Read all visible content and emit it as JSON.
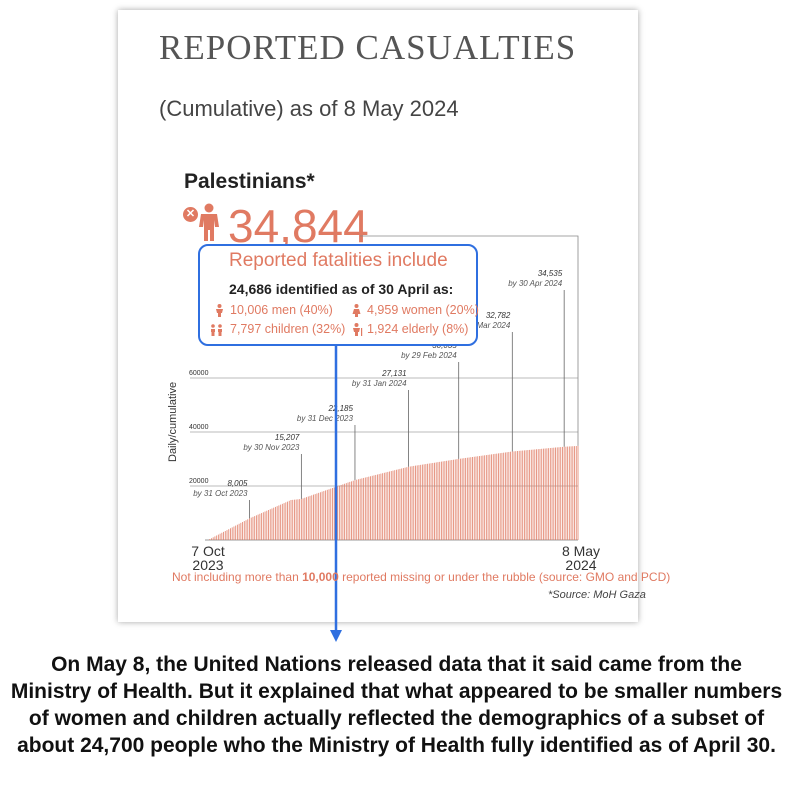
{
  "header": {
    "title": "REPORTED CASUALTIES",
    "subtitle": "(Cumulative) as of 8 May 2024"
  },
  "group": {
    "name": "Palestinians*",
    "total": "34,844"
  },
  "callout": {
    "title": "Reported fatalities include",
    "identified": "24,686 identified as of 30 April as:",
    "breakdown": [
      "10,006 men (40%)",
      "4,959 women (20%)",
      "7,797 children (32%)",
      "1,924 elderly (8%)"
    ]
  },
  "footer": {
    "note_prefix": "Not including more than ",
    "note_bold": "10,000",
    "note_suffix": " reported missing or under the rubble (source: GMO and PCD)",
    "source": "*Source: MoH Gaza"
  },
  "caption": "On May 8, the United Nations released data that it said came from the Ministry of Health. But it explained that what appeared to be smaller numbers of women and children actually reflected the demographics of a subset of about 24,700 people who the Ministry of Health fully identified as of April 30.",
  "colors": {
    "accent": "#e07a62",
    "callout_border": "#2f6fe0"
  },
  "chart_data": {
    "type": "bar",
    "ylabel": "Daily/cumulative",
    "ylim": [
      0,
      60000
    ],
    "yticks": [
      "20000",
      "40000",
      "60000"
    ],
    "x_start": "7 Oct\n2023",
    "x_end": "8 May\n2024",
    "series": [
      {
        "values": []
      }
    ],
    "annotations": [
      {
        "value": "8,005",
        "label": "by 31 Oct 2023"
      },
      {
        "value": "15,207",
        "label": "by 30 Nov 2023"
      },
      {
        "value": "22,185",
        "label": "by 31 Dec 2023"
      },
      {
        "value": "27,131",
        "label": "by 31 Jan 2024"
      },
      {
        "value": "30,035",
        "label": "by 29 Feb 2024"
      },
      {
        "value": "32,782",
        "label": "by 31 Mar 2024"
      },
      {
        "value": "34,535",
        "label": "by 30 Apr 2024"
      }
    ],
    "key_points": [
      {
        "date": "2023-10-07",
        "value": 0
      },
      {
        "date": "2023-10-31",
        "value": 8005
      },
      {
        "date": "2023-11-24",
        "value": 14800
      },
      {
        "date": "2023-11-30",
        "value": 15207
      },
      {
        "date": "2023-12-31",
        "value": 22185
      },
      {
        "date": "2024-01-31",
        "value": 27131
      },
      {
        "date": "2024-02-29",
        "value": 30035
      },
      {
        "date": "2024-03-31",
        "value": 32782
      },
      {
        "date": "2024-04-30",
        "value": 34535
      },
      {
        "date": "2024-05-08",
        "value": 34844
      }
    ]
  }
}
